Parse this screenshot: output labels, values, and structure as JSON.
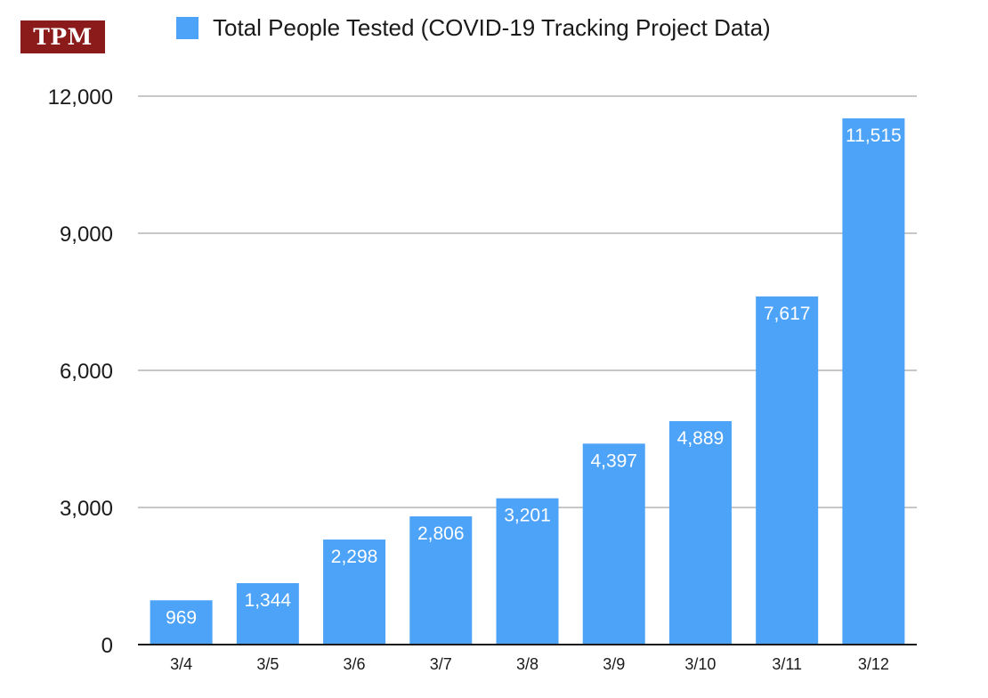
{
  "logo": {
    "text": "TPM",
    "color": "#8b1a1a"
  },
  "chart_data": {
    "type": "bar",
    "categories": [
      "3/4",
      "3/5",
      "3/6",
      "3/7",
      "3/8",
      "3/9",
      "3/10",
      "3/11",
      "3/12"
    ],
    "series": [
      {
        "name": "Total People Tested (COVID-19 Tracking Project Data)",
        "values": [
          969,
          1344,
          2298,
          2806,
          3201,
          4397,
          4889,
          7617,
          11515
        ],
        "value_labels": [
          "969",
          "1,344",
          "2,298",
          "2,806",
          "3,201",
          "4,397",
          "4,889",
          "7,617",
          "11,515"
        ],
        "color": "#4da3f8"
      }
    ],
    "ylim": [
      0,
      12000
    ],
    "yticks": [
      0,
      3000,
      6000,
      9000,
      12000
    ],
    "ytick_labels": [
      "0",
      "3,000",
      "6,000",
      "9,000",
      "12,000"
    ],
    "grid": true,
    "legend": "top",
    "data_label_color": "#ffffff",
    "grid_color": "#c7c7c7",
    "axis_color": "#1a1a1a"
  }
}
